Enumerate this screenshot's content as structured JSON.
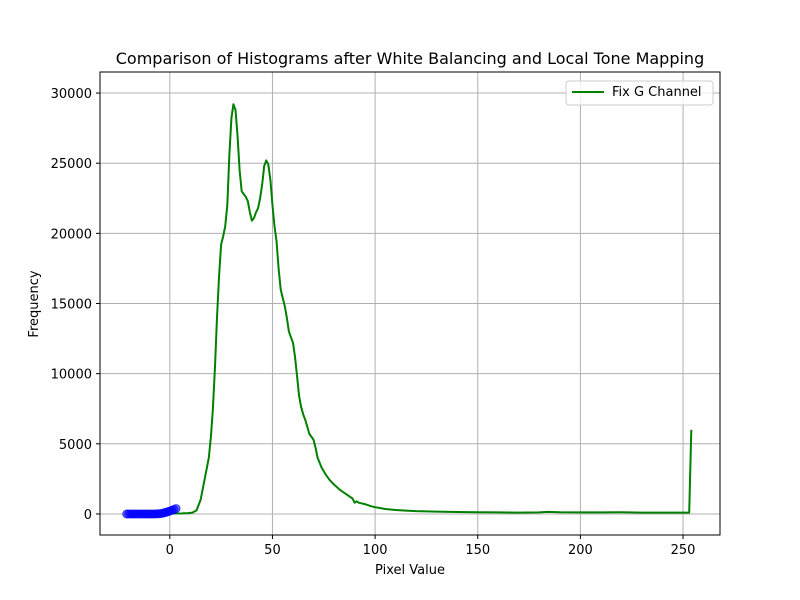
{
  "chart_data": {
    "type": "line",
    "title": "Comparison of Histograms after White Balancing and Local Tone Mapping",
    "xlabel": "Pixel Value",
    "ylabel": "Frequency",
    "xlim": [
      -34,
      268
    ],
    "ylim": [
      -1500,
      31500
    ],
    "grid": true,
    "legend_position": "top-right",
    "x_ticks": [
      0,
      50,
      100,
      150,
      200,
      250
    ],
    "y_ticks": [
      0,
      5000,
      10000,
      15000,
      20000,
      25000,
      30000
    ],
    "series": [
      {
        "name": "Fix G Channel",
        "color": "#008000",
        "x": [
          0,
          3,
          6,
          9,
          11,
          13,
          15,
          17,
          19,
          20,
          21,
          22,
          23,
          24,
          25,
          26,
          27,
          28,
          29,
          30,
          31,
          32,
          33,
          34,
          35,
          36,
          37,
          38,
          39,
          40,
          41,
          42,
          43,
          44,
          45,
          46,
          47,
          48,
          49,
          50,
          51,
          52,
          53,
          54,
          55,
          56,
          57,
          58,
          59,
          60,
          61,
          62,
          63,
          64,
          65,
          66,
          68,
          70,
          71,
          72,
          74,
          76,
          78,
          80,
          83,
          86,
          89,
          90,
          91,
          92,
          95,
          98,
          100,
          105,
          110,
          115,
          120,
          130,
          140,
          150,
          160,
          170,
          180,
          184,
          190,
          200,
          210,
          220,
          230,
          240,
          250,
          253,
          254
        ],
        "y": [
          30,
          30,
          40,
          60,
          100,
          250,
          1000,
          2500,
          4000,
          5500,
          7500,
          10500,
          14000,
          17000,
          19200,
          19800,
          20500,
          22000,
          25500,
          28200,
          29200,
          28800,
          27000,
          24500,
          23000,
          22800,
          22600,
          22300,
          21500,
          20900,
          21100,
          21500,
          21800,
          22500,
          23500,
          24800,
          25200,
          24900,
          23800,
          22000,
          20500,
          19400,
          17500,
          16000,
          15400,
          14800,
          14000,
          13000,
          12600,
          12200,
          11200,
          9800,
          8400,
          7600,
          7100,
          6700,
          5700,
          5300,
          4700,
          4000,
          3300,
          2800,
          2400,
          2100,
          1700,
          1400,
          1100,
          800,
          900,
          800,
          700,
          550,
          480,
          350,
          280,
          240,
          200,
          170,
          140,
          120,
          110,
          100,
          110,
          150,
          120,
          110,
          110,
          120,
          100,
          100,
          100,
          100,
          6000
        ]
      },
      {
        "name": "",
        "color": "#0000ff",
        "marker": "circle",
        "x": [
          -21,
          -20,
          -19,
          -18,
          -17,
          -16,
          -15,
          -14,
          -13,
          -12,
          -11,
          -10,
          -9,
          -8,
          -7,
          -6,
          -5,
          -4,
          -3,
          -2,
          -1,
          0,
          1,
          2,
          3
        ],
        "y": [
          0,
          0,
          0,
          0,
          0,
          0,
          0,
          0,
          0,
          0,
          0,
          0,
          0,
          0,
          0,
          10,
          20,
          40,
          70,
          110,
          160,
          200,
          260,
          320,
          380
        ]
      }
    ]
  }
}
